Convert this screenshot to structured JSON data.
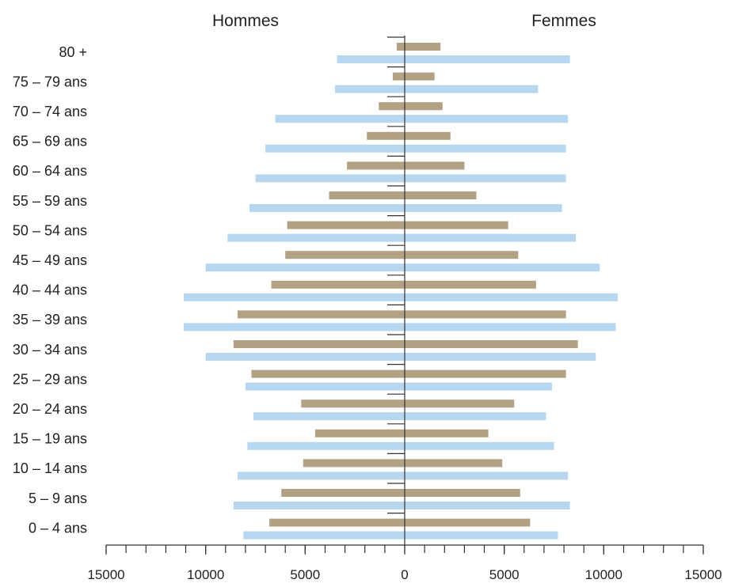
{
  "chart_data": {
    "type": "bar",
    "orientation": "horizontal-population-pyramid",
    "left_label": "Hommes",
    "right_label": "Femmes",
    "categories": [
      "80 +",
      "75 – 79 ans",
      "70 – 74 ans",
      "65 – 69 ans",
      "60 – 64 ans",
      "55 – 59 ans",
      "50 – 54 ans",
      "45 – 49 ans",
      "40 – 44 ans",
      "35 – 39 ans",
      "30 – 34 ans",
      "25 – 29 ans",
      "20 – 24 ans",
      "15 – 19 ans",
      "10 – 14 ans",
      "5 – 9 ans",
      "0 – 4 ans"
    ],
    "series": [
      {
        "side": "Hommes",
        "color": "#b3a184",
        "values": [
          400,
          600,
          1300,
          1900,
          2900,
          3800,
          5900,
          6000,
          6700,
          8400,
          8600,
          7700,
          5200,
          4500,
          5100,
          6200,
          6800
        ]
      },
      {
        "side": "Hommes",
        "color": "#b7d7f1",
        "values": [
          3400,
          3500,
          6500,
          7000,
          7500,
          7800,
          8900,
          10000,
          11100,
          11100,
          10000,
          8000,
          7600,
          7900,
          8400,
          8600,
          8100
        ]
      },
      {
        "side": "Femmes",
        "color": "#b3a184",
        "values": [
          1800,
          1500,
          1900,
          2300,
          3000,
          3600,
          5200,
          5700,
          6600,
          8100,
          8700,
          8100,
          5500,
          4200,
          4900,
          5800,
          6300
        ]
      },
      {
        "side": "Femmes",
        "color": "#b7d7f1",
        "values": [
          8300,
          6700,
          8200,
          8100,
          8100,
          7900,
          8600,
          9800,
          10700,
          10600,
          9600,
          7400,
          7100,
          7500,
          8200,
          8300,
          7700
        ]
      }
    ],
    "xlim": [
      -15000,
      15000
    ],
    "ticks": [
      -15000,
      -10000,
      -5000,
      0,
      5000,
      10000,
      15000
    ],
    "tick_labels": [
      "15000",
      "10000",
      "5000",
      "0",
      "5000",
      "10000",
      "15000"
    ]
  }
}
